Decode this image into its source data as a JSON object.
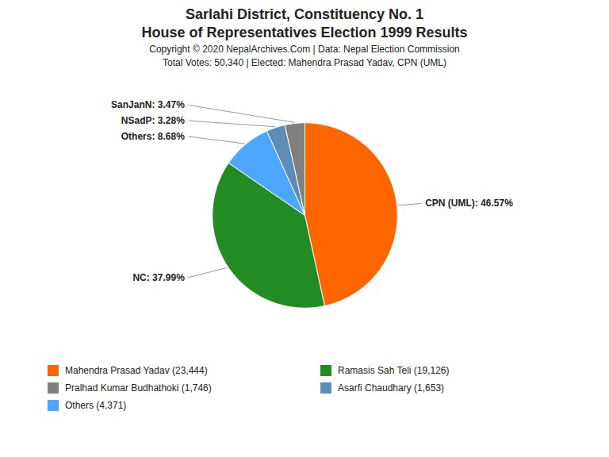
{
  "chart_data": {
    "type": "pie",
    "title": "Sarlahi District, Constituency No. 1",
    "subtitle": "House of Representatives Election 1999 Results",
    "annotations": [
      "Copyright © 2020 NepalArchives.Com | Data: Nepal Election Commission",
      "Total Votes: 50,340 | Elected: Mahendra Prasad Yadav, CPN (UML)"
    ],
    "categories": [
      "CPN (UML)",
      "NC",
      "Others",
      "NSadP",
      "SanJanN"
    ],
    "values": [
      46.57,
      37.99,
      8.68,
      3.28,
      3.47
    ],
    "colors": [
      "#ff6600",
      "#228b22",
      "#4da6ff",
      "#5b8db8",
      "#808080"
    ],
    "data_labels": true,
    "value_labels": [
      "CPN (UML): 46.57%",
      "NC: 37.99%",
      "Others: 8.68%",
      "NSadP: 3.28%",
      "SanJanN: 3.47%"
    ],
    "legend_labels": [
      "Mahendra Prasad Yadav (23,444)",
      "Ramasis Sah Teli (19,126)",
      "Pralhad Kumar Budhathoki (1,746)",
      "Asarfi Chaudhary (1,653)",
      "Others (4,371)"
    ],
    "legend_colors": [
      "#ff6600",
      "#228b22",
      "#808080",
      "#5b8db8",
      "#4da6ff"
    ]
  }
}
